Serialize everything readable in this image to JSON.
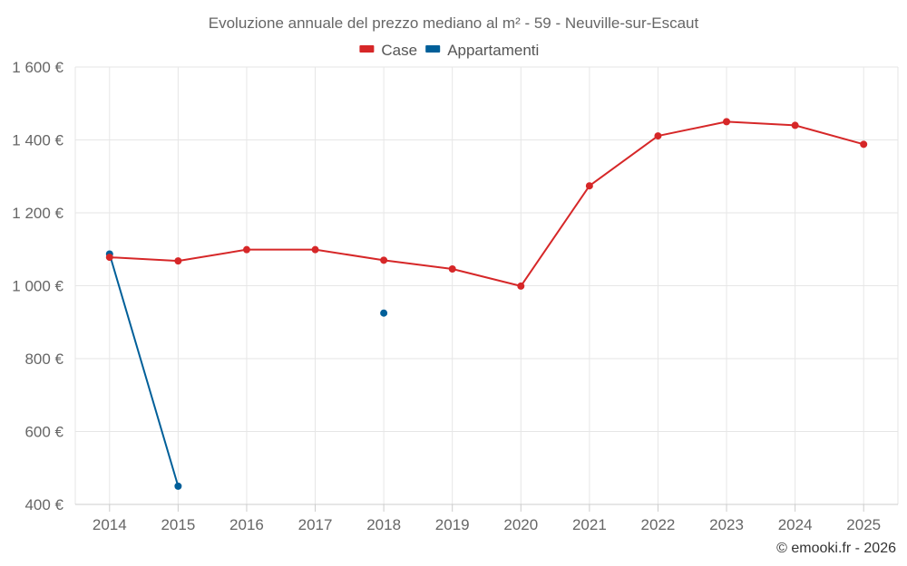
{
  "chart_data": {
    "type": "line",
    "title": "Evoluzione annuale del prezzo mediano al m² - 59 - Neuville-sur-Escaut",
    "categories": [
      "2014",
      "2015",
      "2016",
      "2017",
      "2018",
      "2019",
      "2020",
      "2021",
      "2022",
      "2023",
      "2024",
      "2025"
    ],
    "series": [
      {
        "name": "Case",
        "color": "#d62728",
        "values": [
          1078,
          1068,
          1099,
          1099,
          1070,
          1046,
          999,
          1274,
          1411,
          1450,
          1440,
          1388
        ]
      },
      {
        "name": "Appartamenti",
        "color": "#005f99",
        "values": [
          1087,
          450,
          null,
          null,
          925,
          null,
          null,
          null,
          null,
          null,
          null,
          null
        ]
      }
    ],
    "ylim": [
      400,
      1600
    ],
    "yticks": [
      400,
      600,
      800,
      1000,
      1200,
      1400,
      1600
    ],
    "ytick_labels": [
      "400 €",
      "600 €",
      "800 €",
      "1 000 €",
      "1 200 €",
      "1 400 €",
      "1 600 €"
    ],
    "legend_position": "top-center",
    "grid": true,
    "xlabel": "",
    "ylabel": ""
  },
  "credit": "© emooki.fr - 2026"
}
